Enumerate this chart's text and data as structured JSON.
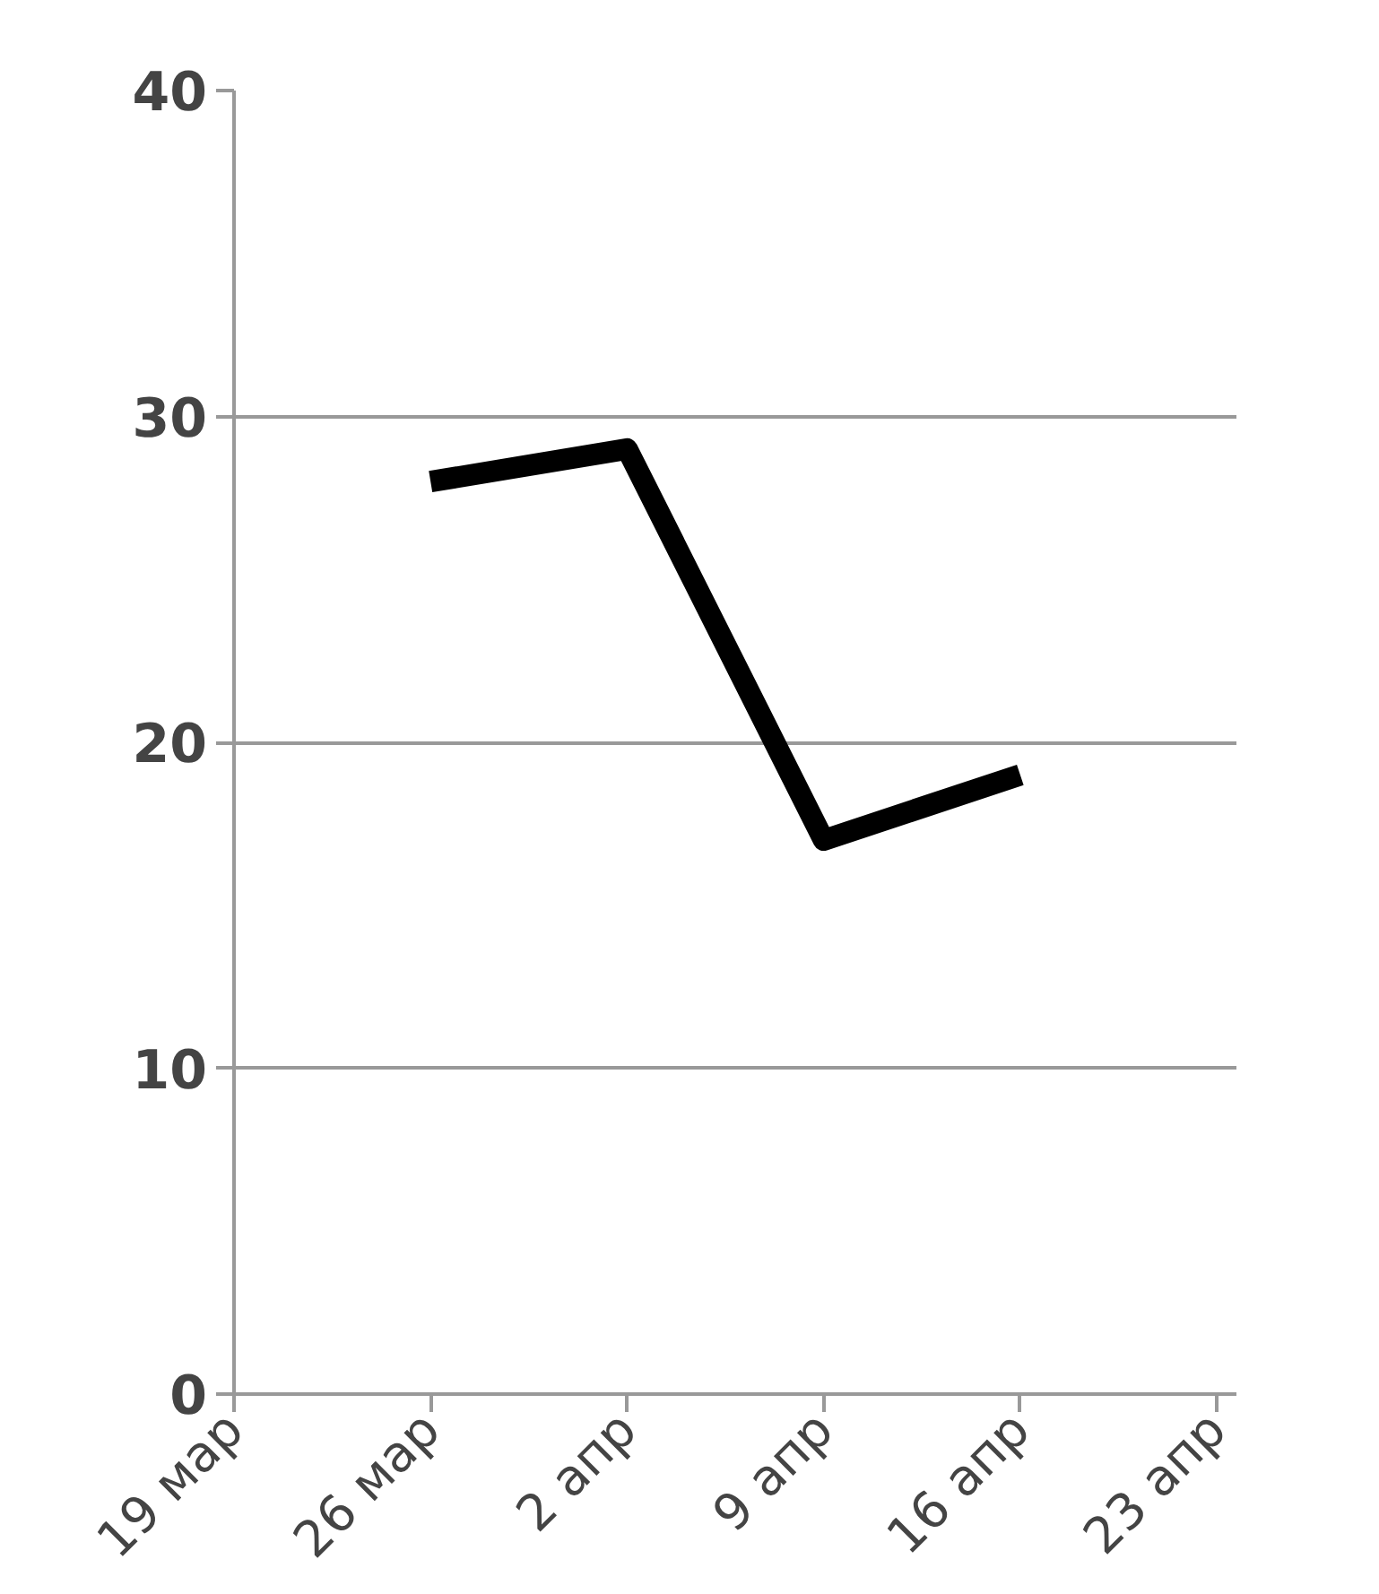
{
  "chart_data": {
    "type": "line",
    "categories": [
      "19 мар",
      "26 мар",
      "2 апр",
      "9 апр",
      "16 апр",
      "23 апр"
    ],
    "series": [
      {
        "color": "#000000",
        "values": [
          null,
          28,
          29,
          17,
          19,
          null
        ]
      }
    ],
    "ylim": [
      0,
      40
    ],
    "yticks": [
      0,
      10,
      20,
      30,
      40
    ],
    "grid": "y",
    "marker": "none",
    "line_style": "solid"
  }
}
